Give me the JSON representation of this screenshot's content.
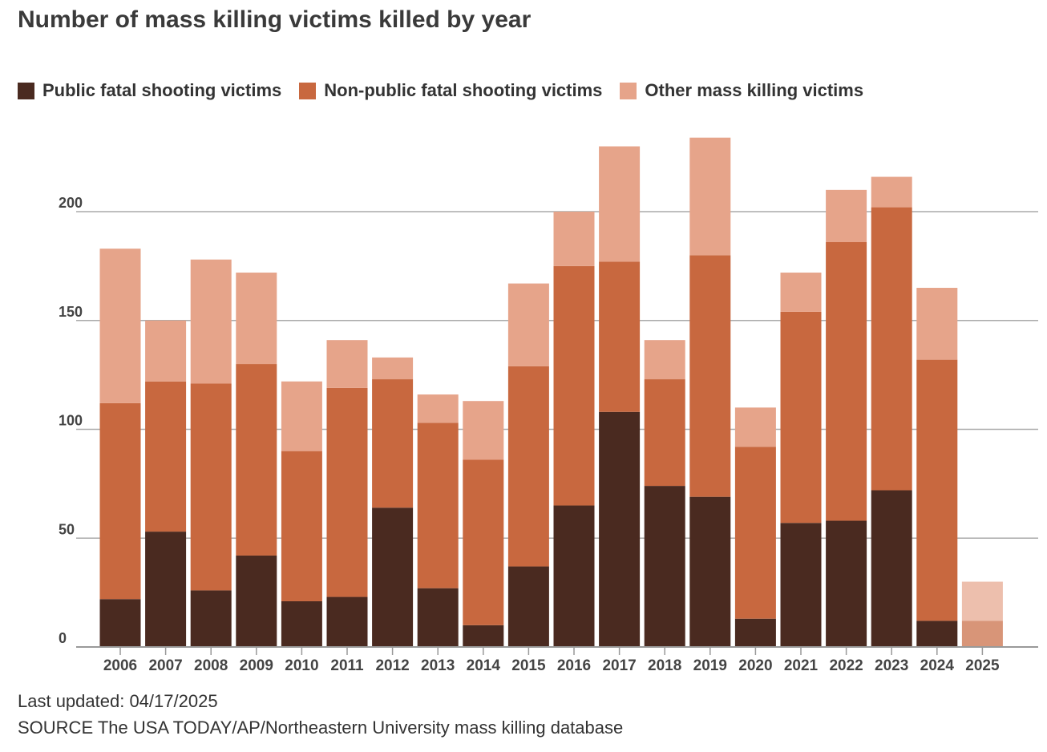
{
  "chart_data": {
    "type": "bar",
    "stacked": true,
    "title": "Number of mass killing victims killed by year",
    "xlabel": "",
    "ylabel": "",
    "ylim": [
      0,
      240
    ],
    "yticks": [
      0,
      50,
      100,
      150,
      200
    ],
    "grid": true,
    "legend_position": "top-left",
    "categories": [
      "2006",
      "2007",
      "2008",
      "2009",
      "2010",
      "2011",
      "2012",
      "2013",
      "2014",
      "2015",
      "2016",
      "2017",
      "2018",
      "2019",
      "2020",
      "2021",
      "2022",
      "2023",
      "2024",
      "2025"
    ],
    "series": [
      {
        "name": "Public fatal shooting victims",
        "color": "#4a2a20",
        "values": [
          22,
          53,
          26,
          42,
          21,
          23,
          64,
          27,
          10,
          37,
          65,
          108,
          74,
          69,
          13,
          57,
          58,
          72,
          12,
          0
        ]
      },
      {
        "name": "Non-public fatal shooting victims",
        "color": "#c8683f",
        "values": [
          90,
          69,
          95,
          88,
          69,
          96,
          59,
          76,
          76,
          92,
          110,
          69,
          49,
          111,
          79,
          97,
          128,
          130,
          120,
          12
        ]
      },
      {
        "name": "Other mass killing victims",
        "color": "#e6a48a",
        "values": [
          71,
          28,
          57,
          42,
          32,
          22,
          10,
          13,
          27,
          38,
          25,
          53,
          18,
          54,
          18,
          18,
          24,
          14,
          33,
          18
        ]
      }
    ],
    "partial_categories": [
      "2025"
    ]
  },
  "footer": {
    "updated": "Last updated: 04/17/2025",
    "source": "SOURCE The USA TODAY/AP/Northeastern University mass killing database"
  }
}
